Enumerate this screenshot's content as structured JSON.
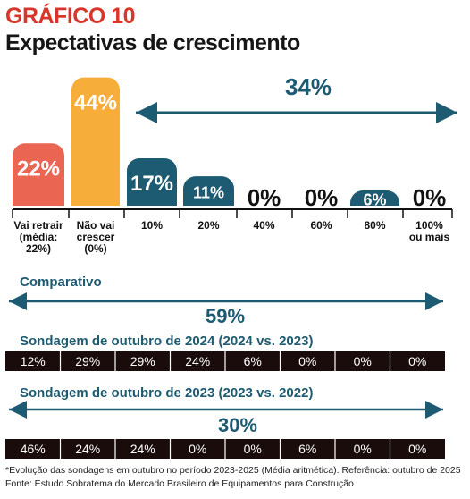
{
  "chart_data": {
    "type": "bar",
    "title": "GRÁFICO 10",
    "subtitle": "Expectativas de crescimento",
    "categories": [
      [
        "Vai retrair",
        "(média:",
        "22%)"
      ],
      [
        "Não vai",
        "crescer",
        "(0%)"
      ],
      [
        "10%"
      ],
      [
        "20%"
      ],
      [
        "40%"
      ],
      [
        "60%"
      ],
      [
        "80%"
      ],
      [
        "100%",
        "ou mais"
      ]
    ],
    "values": [
      22,
      44,
      17,
      11,
      0,
      0,
      6,
      0
    ],
    "value_labels": [
      "22%",
      "44%",
      "17%",
      "11%",
      "0%",
      "0%",
      "6%",
      "0%"
    ],
    "bar_colors": [
      "#ea6552",
      "#f7ad3a",
      "#1c5b72",
      "#1c5b72",
      "#1c5b72",
      "#1c5b72",
      "#1c5b72",
      "#1c5b72"
    ],
    "growth_total_label": "34%"
  },
  "comparativo": {
    "heading": "Comparativo",
    "total_2024": "59%",
    "row_2024_title": "Sondagem de outubro de 2024 (2024 vs. 2023)",
    "row_2024_values": [
      "12%",
      "29%",
      "29%",
      "24%",
      "6%",
      "0%",
      "0%",
      "0%"
    ],
    "row_2023_title": "Sondagem de outubro de 2023 (2023 vs. 2022)",
    "total_2023": "30%",
    "row_2023_values": [
      "46%",
      "24%",
      "24%",
      "0%",
      "0%",
      "6%",
      "0%",
      "0%"
    ]
  },
  "footer": {
    "note": "*Evolução das sondagens em outubro no período 2023-2025 (Média aritmética). Referência: outubro de 2025",
    "source": "Fonte: Estudo Sobratema do Mercado Brasileiro de Equipamentos para Construção"
  },
  "colors": {
    "title": "#d8362b",
    "teal": "#1c5b72",
    "orange": "#f7ad3a",
    "coral": "#ea6552",
    "row_bg": "#1b0c0c"
  }
}
